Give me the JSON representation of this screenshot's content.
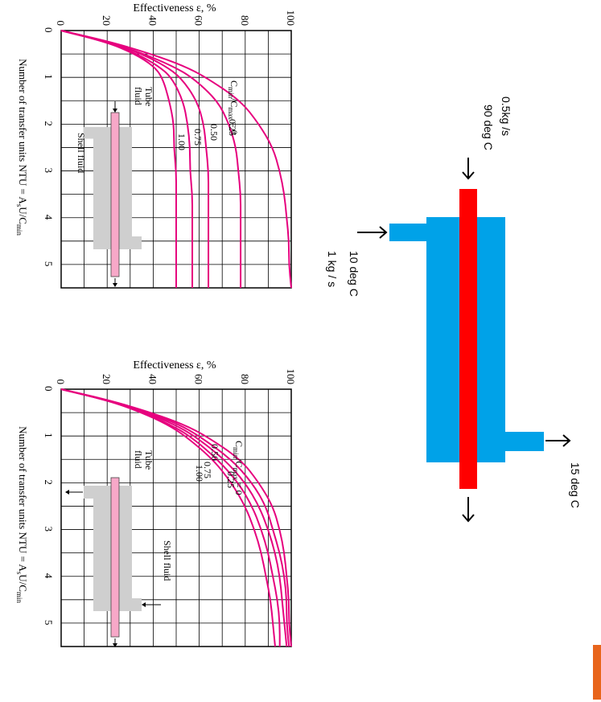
{
  "charts": [
    {
      "id": "counter",
      "ylabel": "Effectiveness ε, %",
      "xlabel": "Number of transfer units NTU = A",
      "xlabel_sub1": "s",
      "xlabel_mid": "U/C",
      "xlabel_sub2": "min",
      "y_ticks": [
        "0",
        "20",
        "40",
        "60",
        "80",
        "100"
      ],
      "x_ticks": [
        "0",
        "1",
        "2",
        "3",
        "4",
        "5"
      ],
      "ratio_label": {
        "c": "C",
        "min": "min",
        "slash": "/C",
        "max": "max",
        "eq": " = 0"
      },
      "curve_labels": [
        "0.25",
        "0.50",
        "0.75",
        "1.00"
      ],
      "inset": {
        "tube_label_1": "Tube",
        "tube_label_2": "fluid",
        "shell_label": "Shell fluid"
      }
    },
    {
      "id": "parallel",
      "ylabel": "Effectiveness ε, %",
      "xlabel": "Number of transfer units NTU = A",
      "xlabel_sub1": "s",
      "xlabel_mid": "U/C",
      "xlabel_sub2": "min",
      "y_ticks": [
        "0",
        "20",
        "40",
        "60",
        "80",
        "100"
      ],
      "x_ticks": [
        "0",
        "1",
        "2",
        "3",
        "4",
        "5"
      ],
      "ratio_label": {
        "c": "C",
        "min": "min",
        "slash": "/C",
        "max": "max",
        "eq": " = 0"
      },
      "curve_labels": [
        "0.25",
        "0.50",
        "0.75",
        "1.00"
      ],
      "inset": {
        "tube_label_1": "Tube",
        "tube_label_2": "fluid",
        "shell_label": "Shell fluid"
      }
    }
  ],
  "chart_data": [
    {
      "type": "line",
      "x_range": [
        0,
        5.5
      ],
      "y_range": [
        0,
        100
      ],
      "grid": true,
      "series": [
        {
          "name": "0",
          "x": [
            0,
            0.25,
            0.5,
            0.75,
            1,
            1.5,
            2,
            2.5,
            3,
            3.5,
            4,
            4.5,
            5,
            5.5
          ],
          "values": [
            0,
            22,
            39,
            53,
            63,
            78,
            86,
            92,
            95,
            97,
            98,
            99,
            99,
            100
          ]
        },
        {
          "name": "0.25",
          "x": [
            0,
            0.25,
            0.5,
            0.75,
            1,
            1.5,
            2,
            2.5,
            3,
            3.5,
            4,
            4.5,
            5,
            5.5
          ],
          "values": [
            0,
            21,
            36,
            48,
            57,
            68,
            73,
            76,
            77,
            78,
            78,
            78,
            78,
            78
          ]
        },
        {
          "name": "0.50",
          "x": [
            0,
            0.25,
            0.5,
            0.75,
            1,
            1.5,
            2,
            2.5,
            3,
            3.5,
            4,
            4.5,
            5,
            5.5
          ],
          "values": [
            0,
            21,
            35,
            45,
            52,
            59,
            62,
            63,
            64,
            64,
            64,
            64,
            64,
            64
          ]
        },
        {
          "name": "0.75",
          "x": [
            0,
            0.25,
            0.5,
            0.75,
            1,
            1.5,
            2,
            2.5,
            3,
            3.5,
            4,
            4.5,
            5,
            5.5
          ],
          "values": [
            0,
            20,
            33,
            42,
            48,
            53,
            55,
            56,
            56,
            57,
            57,
            57,
            57,
            57
          ]
        },
        {
          "name": "1.00",
          "x": [
            0,
            0.25,
            0.5,
            0.75,
            1,
            1.5,
            2,
            2.5,
            3,
            3.5,
            4,
            4.5,
            5,
            5.5
          ],
          "values": [
            0,
            20,
            32,
            40,
            44,
            47,
            49,
            49,
            50,
            50,
            50,
            50,
            50,
            50
          ]
        }
      ]
    },
    {
      "type": "line",
      "x_range": [
        0,
        5.5
      ],
      "y_range": [
        0,
        100
      ],
      "grid": true,
      "series": [
        {
          "name": "0",
          "x": [
            0,
            0.25,
            0.5,
            0.75,
            1,
            1.5,
            2,
            2.5,
            3,
            3.5,
            4,
            4.5,
            5,
            5.5
          ],
          "values": [
            0,
            22,
            39,
            53,
            63,
            78,
            86,
            92,
            95,
            97,
            98,
            99,
            99,
            100
          ]
        },
        {
          "name": "0.25",
          "x": [
            0,
            0.25,
            0.5,
            0.75,
            1,
            1.5,
            2,
            2.5,
            3,
            3.5,
            4,
            4.5,
            5,
            5.5
          ],
          "values": [
            0,
            22,
            38,
            51,
            60,
            74,
            83,
            89,
            92,
            95,
            97,
            98,
            98,
            99
          ]
        },
        {
          "name": "0.50",
          "x": [
            0,
            0.25,
            0.5,
            0.75,
            1,
            1.5,
            2,
            2.5,
            3,
            3.5,
            4,
            4.5,
            5,
            5.5
          ],
          "values": [
            0,
            21,
            37,
            49,
            58,
            71,
            80,
            86,
            90,
            93,
            95,
            96,
            97,
            98
          ]
        },
        {
          "name": "0.75",
          "x": [
            0,
            0.25,
            0.5,
            0.75,
            1,
            1.5,
            2,
            2.5,
            3,
            3.5,
            4,
            4.5,
            5,
            5.5
          ],
          "values": [
            0,
            21,
            36,
            47,
            56,
            68,
            77,
            83,
            87,
            90,
            92,
            94,
            95,
            95
          ]
        },
        {
          "name": "1.00",
          "x": [
            0,
            0.25,
            0.5,
            0.75,
            1,
            1.5,
            2,
            2.5,
            3,
            3.5,
            4,
            4.5,
            5,
            5.5
          ],
          "values": [
            0,
            21,
            35,
            46,
            54,
            66,
            74,
            80,
            84,
            87,
            89,
            91,
            92,
            93
          ]
        }
      ]
    }
  ],
  "schematic": {
    "tube_color": "#ff0000",
    "shell_color": "#00a2e8",
    "curve_color": "#e6007e",
    "tube_inlet_flow": "0.5kg /s",
    "tube_inlet_temp": "90 deg C",
    "shell_inlet_temp": "10 deg C",
    "shell_inlet_flow": "1 kg / s",
    "shell_outlet_temp": "15 deg C"
  }
}
